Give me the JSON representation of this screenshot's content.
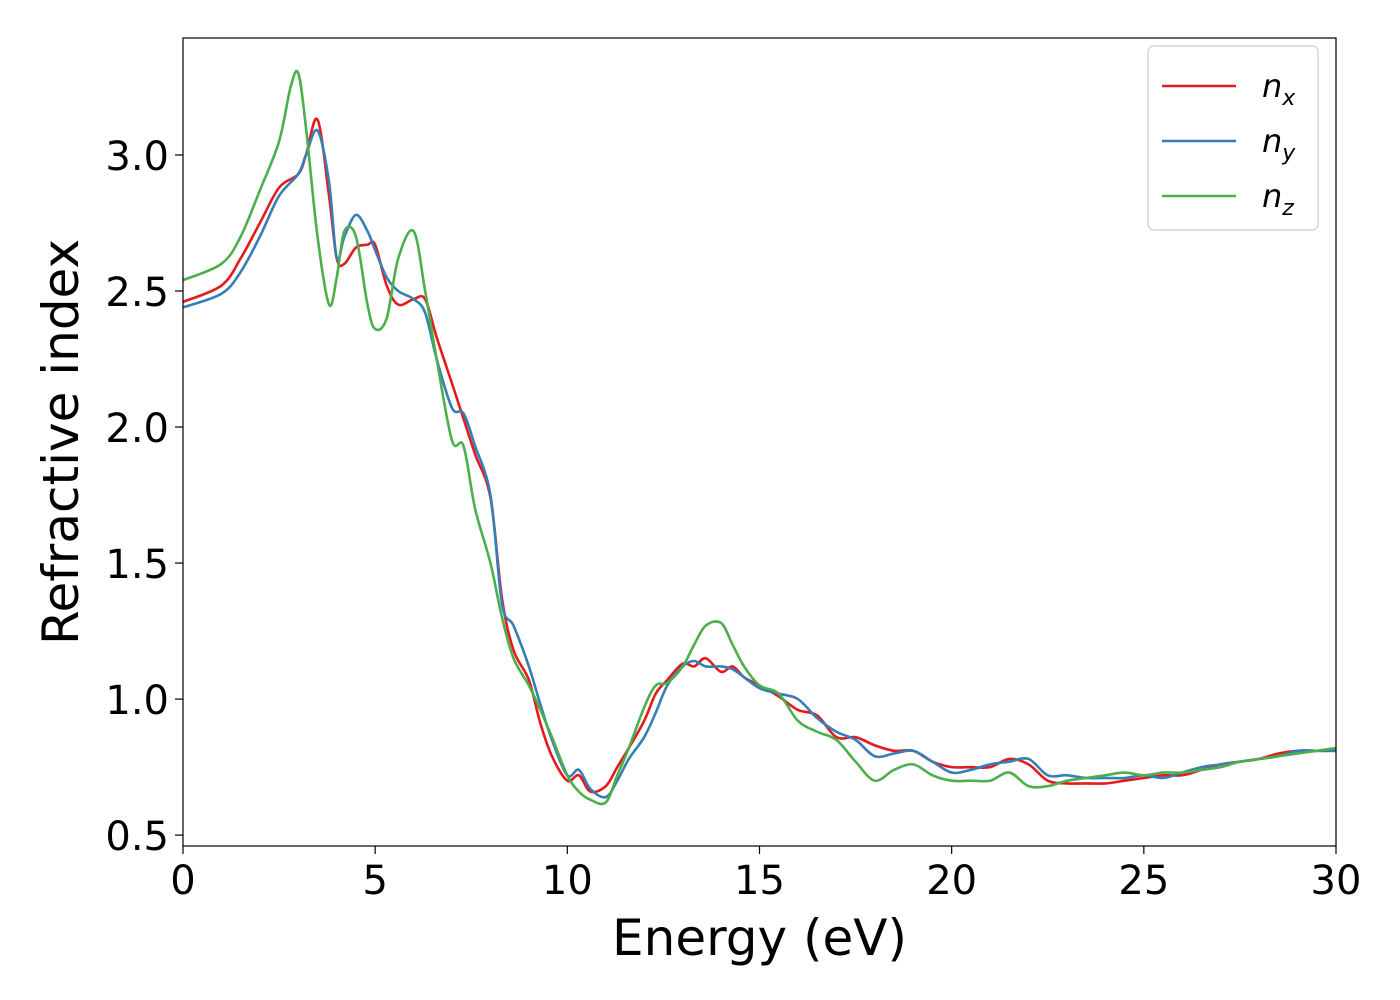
{
  "chart_data": {
    "type": "line",
    "title": "",
    "xlabel": "Energy (eV)",
    "ylabel": "Refractive index",
    "xlim": [
      0,
      30
    ],
    "ylim": [
      0.46,
      3.43
    ],
    "xticks": [
      0,
      5,
      10,
      15,
      20,
      25,
      30
    ],
    "xtick_labels": [
      "0",
      "5",
      "10",
      "15",
      "20",
      "25",
      "30"
    ],
    "yticks": [
      0.5,
      1.0,
      1.5,
      2.0,
      2.5,
      3.0
    ],
    "ytick_labels": [
      "0.5",
      "1.0",
      "1.5",
      "2.0",
      "2.5",
      "3.0"
    ],
    "grid": false,
    "legend_position": "top-right",
    "series": [
      {
        "name": "n",
        "subscript": "x",
        "color": "#e41a1c",
        "x": [
          0,
          1,
          1.5,
          2,
          2.5,
          3,
          3.2,
          3.5,
          3.8,
          4,
          4.2,
          4.5,
          4.8,
          5,
          5.3,
          5.6,
          6,
          6.3,
          6.6,
          7,
          7.3,
          7.6,
          8,
          8.3,
          8.6,
          9,
          9.3,
          9.6,
          10,
          10.3,
          10.6,
          11,
          11.3,
          11.6,
          12,
          12.3,
          12.6,
          13,
          13.3,
          13.6,
          14,
          14.3,
          14.6,
          15,
          15.5,
          16,
          16.5,
          17,
          17.5,
          18,
          18.5,
          19,
          19.5,
          20,
          20.5,
          21,
          21.5,
          22,
          22.5,
          23,
          23.5,
          24,
          24.5,
          25,
          25.5,
          26,
          26.5,
          27,
          27.5,
          28,
          28.5,
          29,
          29.5,
          30
        ],
        "y": [
          2.46,
          2.52,
          2.62,
          2.75,
          2.88,
          2.93,
          3.0,
          3.13,
          2.85,
          2.62,
          2.6,
          2.66,
          2.67,
          2.67,
          2.52,
          2.45,
          2.47,
          2.47,
          2.33,
          2.16,
          2.03,
          1.9,
          1.74,
          1.37,
          1.18,
          1.07,
          0.91,
          0.79,
          0.7,
          0.72,
          0.66,
          0.68,
          0.75,
          0.82,
          0.92,
          1.02,
          1.07,
          1.13,
          1.12,
          1.15,
          1.1,
          1.12,
          1.08,
          1.05,
          1.01,
          0.96,
          0.94,
          0.86,
          0.86,
          0.83,
          0.81,
          0.81,
          0.77,
          0.75,
          0.75,
          0.75,
          0.78,
          0.76,
          0.7,
          0.69,
          0.69,
          0.69,
          0.7,
          0.71,
          0.72,
          0.72,
          0.74,
          0.76,
          0.77,
          0.78,
          0.8,
          0.81,
          0.81,
          0.81
        ]
      },
      {
        "name": "n",
        "subscript": "y",
        "color": "#377eb8",
        "x": [
          0,
          1,
          1.5,
          2,
          2.5,
          3,
          3.2,
          3.5,
          3.8,
          4,
          4.2,
          4.5,
          4.8,
          5,
          5.3,
          5.6,
          6,
          6.3,
          6.6,
          7,
          7.3,
          7.6,
          8,
          8.3,
          8.6,
          9,
          9.3,
          9.6,
          10,
          10.3,
          10.6,
          11,
          11.3,
          11.6,
          12,
          12.3,
          12.6,
          13,
          13.3,
          13.6,
          14,
          14.3,
          14.6,
          15,
          15.5,
          16,
          16.5,
          17,
          17.5,
          18,
          18.5,
          19,
          19.5,
          20,
          20.5,
          21,
          21.5,
          22,
          22.5,
          23,
          23.5,
          24,
          24.5,
          25,
          25.5,
          26,
          26.5,
          27,
          27.5,
          28,
          28.5,
          29,
          29.5,
          30
        ],
        "y": [
          2.44,
          2.49,
          2.57,
          2.7,
          2.85,
          2.93,
          3.0,
          3.09,
          2.9,
          2.62,
          2.7,
          2.78,
          2.72,
          2.65,
          2.55,
          2.5,
          2.47,
          2.42,
          2.25,
          2.07,
          2.05,
          1.93,
          1.75,
          1.35,
          1.27,
          1.12,
          0.98,
          0.85,
          0.72,
          0.74,
          0.67,
          0.64,
          0.7,
          0.78,
          0.86,
          0.95,
          1.05,
          1.12,
          1.14,
          1.12,
          1.12,
          1.11,
          1.08,
          1.04,
          1.02,
          1.0,
          0.93,
          0.88,
          0.85,
          0.79,
          0.8,
          0.81,
          0.77,
          0.73,
          0.74,
          0.76,
          0.77,
          0.78,
          0.72,
          0.72,
          0.71,
          0.71,
          0.71,
          0.72,
          0.71,
          0.73,
          0.75,
          0.76,
          0.77,
          0.78,
          0.79,
          0.81,
          0.81,
          0.81
        ]
      },
      {
        "name": "n",
        "subscript": "z",
        "color": "#4daf4a",
        "x": [
          0,
          1,
          1.5,
          2,
          2.5,
          2.8,
          3,
          3.2,
          3.5,
          3.8,
          4,
          4.2,
          4.5,
          4.8,
          5,
          5.3,
          5.6,
          6,
          6.3,
          6.6,
          7,
          7.3,
          7.6,
          8,
          8.3,
          8.6,
          9,
          9.3,
          9.6,
          10,
          10.3,
          10.6,
          11,
          11.3,
          11.6,
          12,
          12.3,
          12.6,
          13,
          13.3,
          13.6,
          14,
          14.3,
          14.6,
          15,
          15.5,
          16,
          16.5,
          17,
          17.5,
          18,
          18.5,
          19,
          19.5,
          20,
          20.5,
          21,
          21.5,
          22,
          22.5,
          23,
          23.5,
          24,
          24.5,
          25,
          25.5,
          26,
          26.5,
          27,
          27.5,
          28,
          28.5,
          29,
          29.5,
          30
        ],
        "y": [
          2.54,
          2.6,
          2.7,
          2.87,
          3.05,
          3.25,
          3.3,
          3.1,
          2.7,
          2.45,
          2.55,
          2.72,
          2.7,
          2.45,
          2.36,
          2.4,
          2.62,
          2.72,
          2.5,
          2.25,
          1.95,
          1.93,
          1.7,
          1.5,
          1.3,
          1.15,
          1.05,
          0.96,
          0.86,
          0.72,
          0.66,
          0.63,
          0.62,
          0.72,
          0.82,
          0.97,
          1.05,
          1.06,
          1.12,
          1.2,
          1.27,
          1.28,
          1.2,
          1.12,
          1.05,
          1.02,
          0.92,
          0.88,
          0.85,
          0.77,
          0.7,
          0.74,
          0.76,
          0.72,
          0.7,
          0.7,
          0.7,
          0.73,
          0.68,
          0.68,
          0.7,
          0.71,
          0.72,
          0.73,
          0.72,
          0.73,
          0.73,
          0.74,
          0.75,
          0.77,
          0.78,
          0.79,
          0.8,
          0.81,
          0.82
        ]
      }
    ]
  }
}
